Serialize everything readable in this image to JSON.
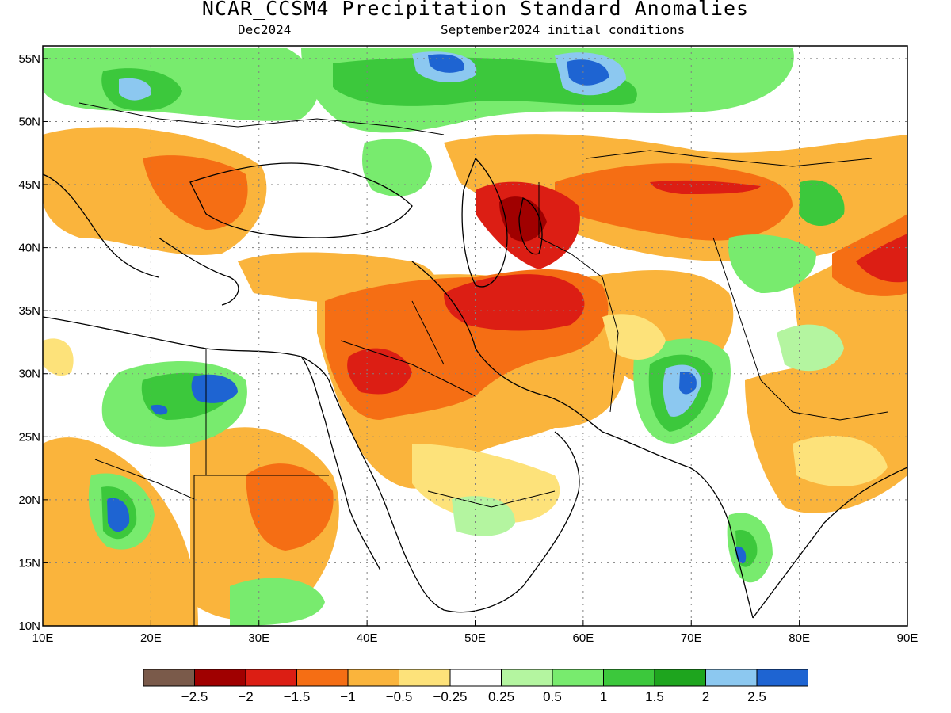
{
  "title": "NCAR_CCSM4 Precipitation Standard Anomalies",
  "subtitle_left": "Dec2024",
  "subtitle_right": "September2024 initial conditions",
  "map": {
    "lon_range": [
      10,
      90
    ],
    "lat_range": [
      10,
      56
    ],
    "lon_ticks": [
      "10E",
      "20E",
      "30E",
      "40E",
      "50E",
      "60E",
      "70E",
      "80E",
      "90E"
    ],
    "lat_ticks": [
      "55N",
      "50N",
      "45N",
      "40N",
      "35N",
      "30N",
      "25N",
      "20N",
      "15N",
      "10N"
    ],
    "grid": "dotted"
  },
  "colorbar": {
    "colors": [
      "#7a5a4a",
      "#a00000",
      "#dc1e14",
      "#f56e14",
      "#fab43c",
      "#fde27a",
      "#ffffff",
      "#b4f5a0",
      "#78eb6e",
      "#3cc83c",
      "#1ea51e",
      "#8cc8f0",
      "#1e64d2"
    ],
    "labels": [
      "−2.5",
      "−2",
      "−1.5",
      "−1",
      "−0.5",
      "−0.25",
      "0.25",
      "0.5",
      "1",
      "1.5",
      "2",
      "2.5"
    ]
  }
}
